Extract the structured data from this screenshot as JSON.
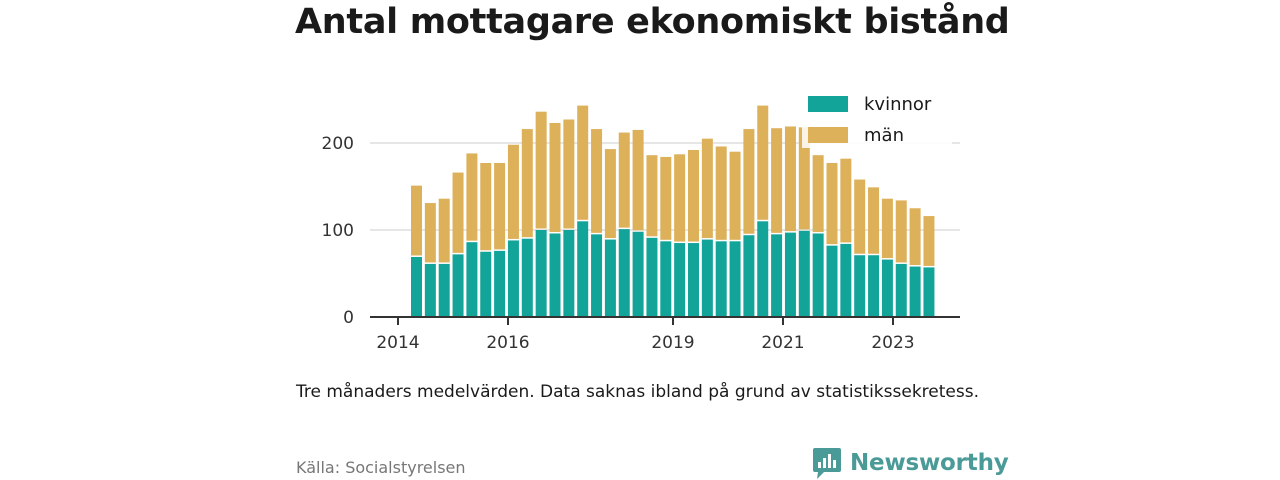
{
  "title": "Antal mottagare ekonomiskt bistånd",
  "note": "Tre månaders medelvärden. Data saknas ibland på grund av statistikssekretess.",
  "source": "Källa: Socialstyrelsen",
  "brand": {
    "name": "Newsworthy",
    "icon": "newsworthy-logo-icon",
    "color": "#4a9a97"
  },
  "colors": {
    "kvinnor": "#12a399",
    "man": "#ddb05a",
    "axis": "#333333",
    "grid": "#dddddd"
  },
  "chart_data": {
    "type": "bar",
    "stacked": true,
    "series": [
      {
        "name": "kvinnor",
        "values": [
          69,
          61,
          61,
          72,
          86,
          75,
          76,
          88,
          90,
          100,
          96,
          100,
          110,
          95,
          89,
          101,
          98,
          91,
          87,
          85,
          85,
          89,
          87,
          87,
          94,
          110,
          95,
          97,
          99,
          96,
          82,
          84,
          71,
          71,
          66,
          61,
          58,
          57
        ]
      },
      {
        "name": "män",
        "values": [
          82,
          70,
          75,
          94,
          102,
          102,
          101,
          110,
          126,
          136,
          127,
          127,
          133,
          121,
          104,
          111,
          117,
          95,
          97,
          102,
          107,
          116,
          109,
          103,
          122,
          133,
          122,
          122,
          119,
          90,
          95,
          98,
          87,
          78,
          70,
          73,
          67,
          59
        ]
      }
    ],
    "x_tick_labels": [
      "2014",
      "2016",
      "2019",
      "2021",
      "2023"
    ],
    "y_ticks": [
      0,
      100,
      200
    ],
    "ylim": [
      0,
      250
    ],
    "grid": true,
    "legend": [
      "kvinnor",
      "män"
    ],
    "legend_position": "top-right"
  }
}
